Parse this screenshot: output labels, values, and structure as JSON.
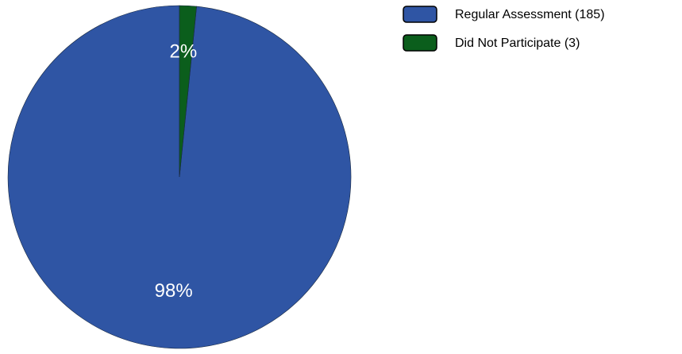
{
  "chart_data": {
    "type": "pie",
    "slices": [
      {
        "label": "Regular Assessment (185)",
        "value": 185,
        "percent_label": "98%",
        "color": "#2f55a4"
      },
      {
        "label": "Did Not Participate (3)",
        "value": 3,
        "percent_label": "2%",
        "color": "#0b5e1c"
      }
    ],
    "start_angle_deg": 0,
    "direction": "counterclockwise",
    "legend_position": "top-right",
    "title": ""
  }
}
